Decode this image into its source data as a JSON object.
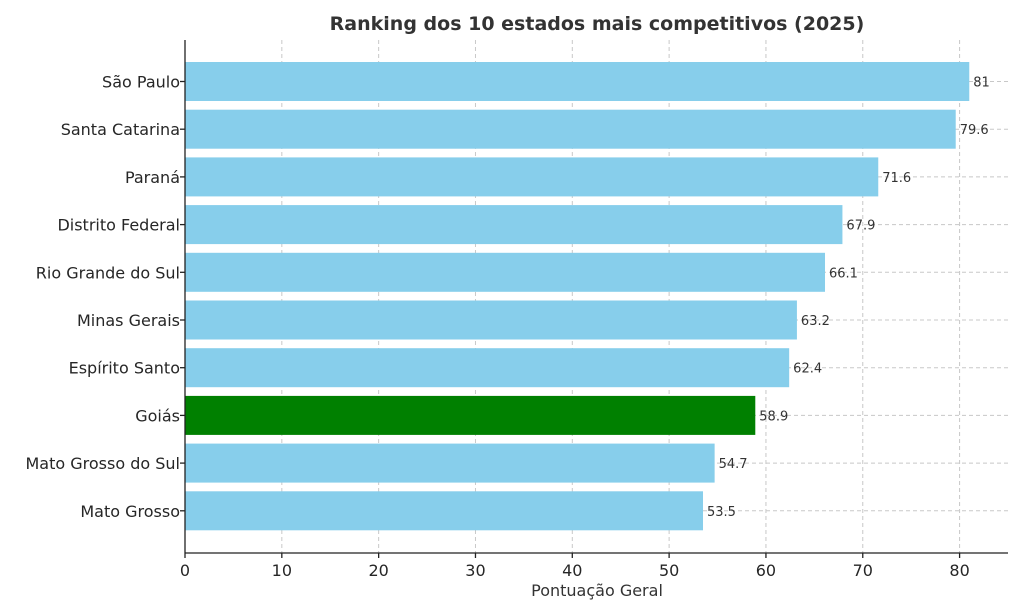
{
  "chart_data": {
    "type": "bar",
    "orientation": "horizontal",
    "title": "Ranking dos 10 estados mais competitivos (2025)",
    "xlabel": "Pontuação Geral",
    "ylabel": "",
    "xlim": [
      0,
      85
    ],
    "xticks": [
      0,
      10,
      20,
      30,
      40,
      50,
      60,
      70,
      80
    ],
    "grid": true,
    "categories": [
      "São Paulo",
      "Santa Catarina",
      "Paraná",
      "Distrito Federal",
      "Rio Grande do Sul",
      "Minas Gerais",
      "Espírito Santo",
      "Goiás",
      "Mato Grosso do Sul",
      "Mato Grosso"
    ],
    "values": [
      81,
      79.6,
      71.6,
      67.9,
      66.1,
      63.2,
      62.4,
      58.9,
      54.7,
      53.5
    ],
    "value_labels": [
      "81",
      "79.6",
      "71.6",
      "67.9",
      "66.1",
      "63.2",
      "62.4",
      "58.9",
      "54.7",
      "53.5"
    ],
    "colors": {
      "default": "#87CEEB",
      "highlight": "#008000"
    },
    "highlight_category": "Goiás"
  }
}
